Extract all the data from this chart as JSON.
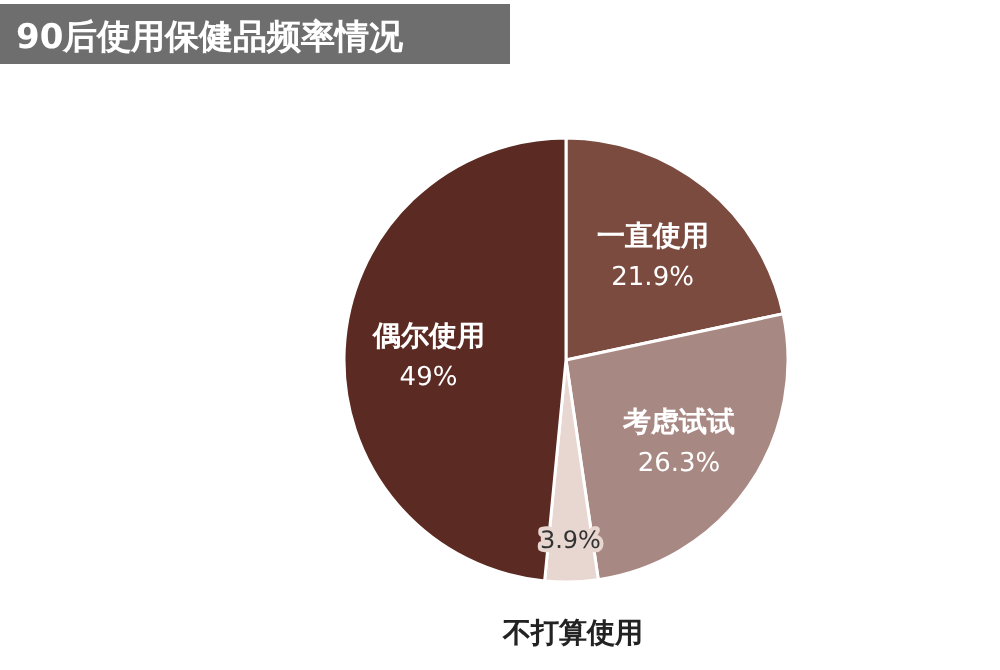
{
  "chart_data": {
    "type": "pie",
    "title": "90后使用保健品频率情况",
    "categories": [
      "一直使用",
      "考虑试试",
      "不打算使用",
      "偶尔使用"
    ],
    "values": [
      21.9,
      26.3,
      3.9,
      49
    ],
    "value_labels": [
      "21.9%",
      "26.3%",
      "3.9%",
      "49%"
    ],
    "colors": [
      "#7b4b3f",
      "#a88883",
      "#e8d6d0",
      "#5b2a22"
    ]
  }
}
